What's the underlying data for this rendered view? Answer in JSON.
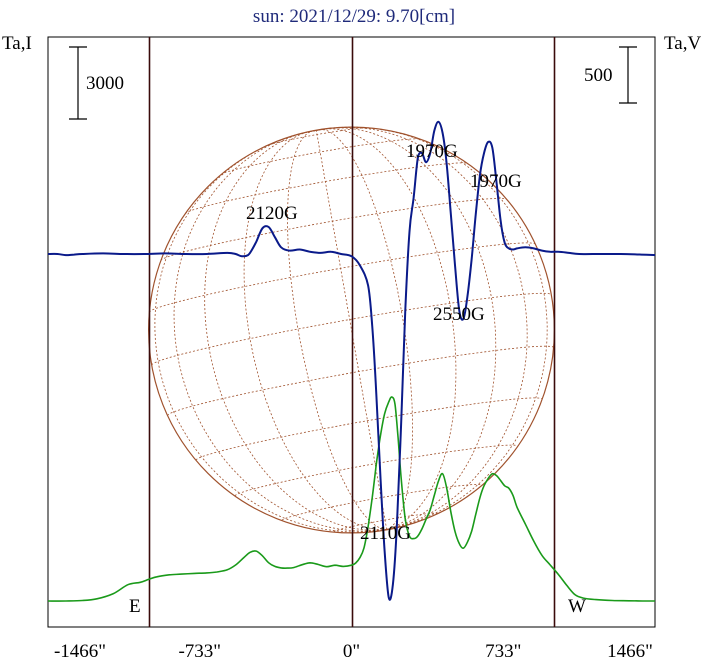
{
  "chart_data": {
    "type": "line",
    "title": "sun: 2021/12/29: 9.70[cm]",
    "y_left_label": "Ta,I",
    "y_right_label": "Ta,V",
    "scale_bar_left": "3000",
    "scale_bar_right": "500",
    "x_unit": "arcsec",
    "xlim": [
      -1466,
      1466
    ],
    "x_ticks": [
      -1466,
      -733,
      0,
      733,
      1466
    ],
    "x_tick_labels": [
      "-1466\"",
      "-733\"",
      "0\"",
      "733\"",
      "1466\""
    ],
    "limb_markers": {
      "E": -980,
      "W": 980
    },
    "limb_labels": {
      "east": "E",
      "west": "W"
    },
    "grid": false,
    "series": [
      {
        "color": "#1a9a1a",
        "role": "Stokes I (green)",
        "x": [
          -1466,
          -1380,
          -1300,
          -1230,
          -1150,
          -1080,
          -1020,
          -980,
          -940,
          -880,
          -820,
          -760,
          -700,
          -650,
          -600,
          -560,
          -520,
          -490,
          -460,
          -430,
          -400,
          -370,
          -340,
          -310,
          -280,
          -240,
          -200,
          -160,
          -120,
          -80,
          -40,
          0,
          20,
          40,
          60,
          80,
          100,
          120,
          140,
          160,
          180,
          195,
          210,
          225,
          240,
          260,
          280,
          300,
          320,
          340,
          360,
          380,
          400,
          420,
          440,
          460,
          480,
          500,
          520,
          540,
          560,
          580,
          600,
          620,
          640,
          660,
          680,
          700,
          720,
          740,
          760,
          780,
          800,
          840,
          880,
          920,
          960,
          1000,
          1040,
          1080,
          1120,
          1180,
          1260,
          1340,
          1420,
          1466
        ],
        "y": [
          0,
          0,
          20,
          90,
          310,
          680,
          780,
          900,
          1010,
          1090,
          1120,
          1150,
          1170,
          1210,
          1300,
          1500,
          1810,
          2030,
          2080,
          1880,
          1590,
          1440,
          1380,
          1370,
          1390,
          1510,
          1590,
          1520,
          1430,
          1490,
          1440,
          1490,
          1580,
          1800,
          2200,
          3100,
          4300,
          5700,
          6900,
          7800,
          8300,
          8500,
          8200,
          6800,
          5100,
          3400,
          2700,
          2600,
          2700,
          3000,
          3400,
          3800,
          4400,
          5000,
          5300,
          4700,
          3700,
          2900,
          2400,
          2200,
          2450,
          2900,
          3600,
          4300,
          4800,
          5100,
          5300,
          5230,
          5020,
          4800,
          4700,
          4400,
          3900,
          3200,
          2500,
          1900,
          1500,
          1100,
          650,
          260,
          120,
          60,
          20,
          10,
          0,
          0
        ]
      },
      {
        "color": "#0a1a8a",
        "role": "Stokes V (blue)",
        "x": [
          -1466,
          -1420,
          -1380,
          -1340,
          -1300,
          -1200,
          -1100,
          -1000,
          -900,
          -800,
          -700,
          -600,
          -560,
          -530,
          -500,
          -480,
          -460,
          -430,
          -400,
          -370,
          -340,
          -300,
          -250,
          -200,
          -150,
          -100,
          -50,
          0,
          40,
          80,
          100,
          120,
          140,
          160,
          180,
          200,
          220,
          240,
          260,
          280,
          300,
          320,
          340,
          360,
          380,
          400,
          420,
          440,
          460,
          480,
          500,
          520,
          540,
          560,
          580,
          600,
          620,
          640,
          660,
          680,
          700,
          720,
          740,
          760,
          780,
          800,
          840,
          880,
          920,
          960,
          1000,
          1050,
          1100,
          1200,
          1300,
          1400,
          1466
        ],
        "y": [
          0,
          0,
          -10,
          -5,
          0,
          5,
          0,
          0,
          5,
          0,
          0,
          10,
          0,
          -20,
          -10,
          40,
          110,
          230,
          240,
          150,
          60,
          30,
          40,
          20,
          10,
          20,
          0,
          -20,
          -100,
          -280,
          -640,
          -1250,
          -2000,
          -2650,
          -3070,
          -2950,
          -2400,
          -1500,
          -500,
          200,
          500,
          850,
          900,
          820,
          900,
          1100,
          1180,
          1080,
          800,
          350,
          -100,
          -500,
          -580,
          -380,
          -50,
          350,
          700,
          900,
          1000,
          950,
          650,
          300,
          100,
          50,
          40,
          50,
          60,
          50,
          30,
          20,
          20,
          10,
          0,
          0,
          0,
          -5,
          -10
        ]
      }
    ],
    "annotations": [
      {
        "text": "2120G",
        "x": -430,
        "y_series": "blue"
      },
      {
        "text": "1970G",
        "x": 270,
        "y_series": "blue"
      },
      {
        "text": "1970G",
        "x": 560,
        "y_series": "blue"
      },
      {
        "text": "2550G",
        "x": 470,
        "y_series": "blue"
      },
      {
        "text": "2110G",
        "x": 190,
        "y_series": "blue"
      }
    ],
    "disk": {
      "center_arcsec": [
        0,
        0
      ],
      "radius_arcsec": 980,
      "color": "#a0522d"
    }
  }
}
